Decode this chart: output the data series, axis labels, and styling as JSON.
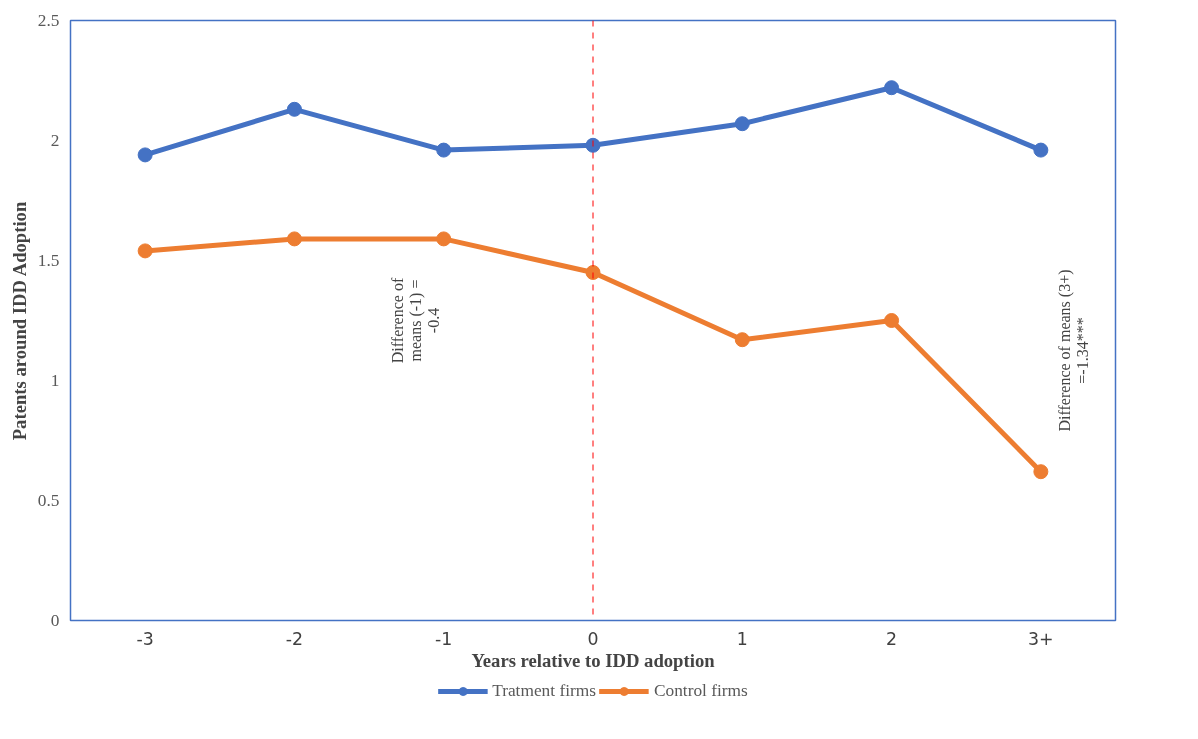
{
  "chart_data": {
    "type": "line",
    "xlabel": "Years relative to IDD adoption",
    "ylabel": "Patents around IDD Adoption",
    "categories": [
      "-3",
      "-2",
      "-1",
      "0",
      "1",
      "2",
      "3+"
    ],
    "series": [
      {
        "name": "Tratment firms",
        "color": "#4472c4",
        "values": [
          1.94,
          2.13,
          1.96,
          1.98,
          2.07,
          2.22,
          1.96
        ]
      },
      {
        "name": "Control firms",
        "color": "#ed7d31",
        "values": [
          1.54,
          1.59,
          1.59,
          1.45,
          1.17,
          1.25,
          0.62
        ]
      }
    ],
    "ylim": [
      0,
      2.5
    ],
    "yticks": [
      0,
      0.5,
      1,
      1.5,
      2,
      2.5
    ],
    "grid": false,
    "legend": "bottom",
    "marker": "circle",
    "line_style": "solid",
    "ref_lines": [
      {
        "axis": "x",
        "value": "0",
        "color": "#ff0000",
        "line_style": "dashed"
      }
    ],
    "annotations": [
      "Difference of\nmeans (-1) =\n-0.4",
      "Difference of means (3+)\n=-1.34***"
    ]
  }
}
